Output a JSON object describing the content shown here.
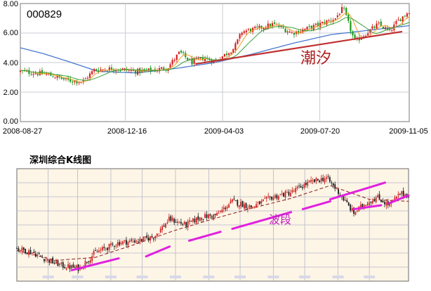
{
  "colors": {
    "up": "#d62020",
    "down": "#1a9a1a",
    "ma_short": "#f0a020",
    "ma_mid": "#3aa03a",
    "ma_long": "#4a78d0",
    "trend": "#c03030",
    "wave_mark": "#e020e0",
    "grid": "#c8ccd4",
    "panel_bg_bottom": "#fdf5e6",
    "panel_grid_bottom": "#b4b8c8"
  },
  "chart_data": [
    {
      "type": "candlestick",
      "title": "000829",
      "annotation": "潮汐",
      "x_ticks": [
        "2008-08-27",
        "2008-12-16",
        "2009-04-03",
        "2009-07-20",
        "2009-11-05"
      ],
      "y_ticks": [
        "8.00",
        "6.00",
        "4.00",
        "2.00",
        "0.00"
      ],
      "ylim": [
        0,
        8
      ],
      "grid": true,
      "close_path": [
        [
          0,
          3.4
        ],
        [
          0.07,
          3.2
        ],
        [
          0.12,
          2.8
        ],
        [
          0.16,
          2.7
        ],
        [
          0.19,
          3.5
        ],
        [
          0.24,
          3.6
        ],
        [
          0.3,
          3.4
        ],
        [
          0.35,
          3.5
        ],
        [
          0.38,
          3.7
        ],
        [
          0.41,
          4.7
        ],
        [
          0.44,
          4.0
        ],
        [
          0.47,
          4.3
        ],
        [
          0.5,
          4.1
        ],
        [
          0.53,
          4.6
        ],
        [
          0.55,
          5.0
        ],
        [
          0.57,
          6.1
        ],
        [
          0.61,
          6.3
        ],
        [
          0.65,
          6.6
        ],
        [
          0.7,
          6.0
        ],
        [
          0.75,
          6.4
        ],
        [
          0.81,
          7.0
        ],
        [
          0.83,
          7.7
        ],
        [
          0.86,
          5.4
        ],
        [
          0.89,
          6.0
        ],
        [
          0.92,
          6.6
        ],
        [
          0.95,
          6.1
        ],
        [
          0.97,
          6.8
        ],
        [
          1.0,
          7.5
        ]
      ],
      "ma_long_path": [
        [
          0,
          5.0
        ],
        [
          0.06,
          4.6
        ],
        [
          0.12,
          4.1
        ],
        [
          0.2,
          3.4
        ],
        [
          0.3,
          3.3
        ],
        [
          0.4,
          3.6
        ],
        [
          0.5,
          4.0
        ],
        [
          0.6,
          4.6
        ],
        [
          0.7,
          5.3
        ],
        [
          0.8,
          5.9
        ],
        [
          0.9,
          6.2
        ],
        [
          1.0,
          6.5
        ]
      ],
      "trend_line": [
        [
          0.45,
          3.9
        ],
        [
          1.0,
          6.1
        ]
      ]
    },
    {
      "type": "candlestick",
      "title": "深圳综合K线图",
      "annotation": "波段",
      "close_path": [
        [
          0,
          0.26
        ],
        [
          0.04,
          0.22
        ],
        [
          0.08,
          0.14
        ],
        [
          0.12,
          0.08
        ],
        [
          0.16,
          0.06
        ],
        [
          0.2,
          0.22
        ],
        [
          0.26,
          0.32
        ],
        [
          0.31,
          0.34
        ],
        [
          0.35,
          0.38
        ],
        [
          0.39,
          0.56
        ],
        [
          0.43,
          0.5
        ],
        [
          0.47,
          0.58
        ],
        [
          0.51,
          0.6
        ],
        [
          0.55,
          0.74
        ],
        [
          0.6,
          0.68
        ],
        [
          0.65,
          0.78
        ],
        [
          0.7,
          0.83
        ],
        [
          0.74,
          0.92
        ],
        [
          0.79,
          0.98
        ],
        [
          0.82,
          0.84
        ],
        [
          0.86,
          0.62
        ],
        [
          0.89,
          0.72
        ],
        [
          0.92,
          0.78
        ],
        [
          0.95,
          0.7
        ],
        [
          0.98,
          0.82
        ],
        [
          1.0,
          0.8
        ]
      ],
      "ma_path": [
        [
          0,
          0.24
        ],
        [
          0.1,
          0.14
        ],
        [
          0.2,
          0.17
        ],
        [
          0.3,
          0.3
        ],
        [
          0.4,
          0.44
        ],
        [
          0.5,
          0.56
        ],
        [
          0.6,
          0.67
        ],
        [
          0.7,
          0.77
        ],
        [
          0.8,
          0.9
        ],
        [
          0.9,
          0.76
        ],
        [
          1.0,
          0.74
        ]
      ],
      "wave_segments": [
        [
          [
            0.14,
            0.04
          ],
          [
            0.26,
            0.16
          ]
        ],
        [
          [
            0.33,
            0.18
          ],
          [
            0.39,
            0.28
          ]
        ],
        [
          [
            0.44,
            0.34
          ],
          [
            0.52,
            0.43
          ]
        ],
        [
          [
            0.55,
            0.46
          ],
          [
            0.7,
            0.63
          ]
        ],
        [
          [
            0.73,
            0.66
          ],
          [
            0.8,
            0.74
          ]
        ],
        [
          [
            0.8,
            0.76
          ],
          [
            0.94,
            0.93
          ]
        ],
        [
          [
            0.86,
            0.66
          ],
          [
            0.93,
            0.7
          ]
        ],
        [
          [
            0.95,
            0.72
          ],
          [
            1.0,
            0.8
          ]
        ]
      ]
    }
  ]
}
